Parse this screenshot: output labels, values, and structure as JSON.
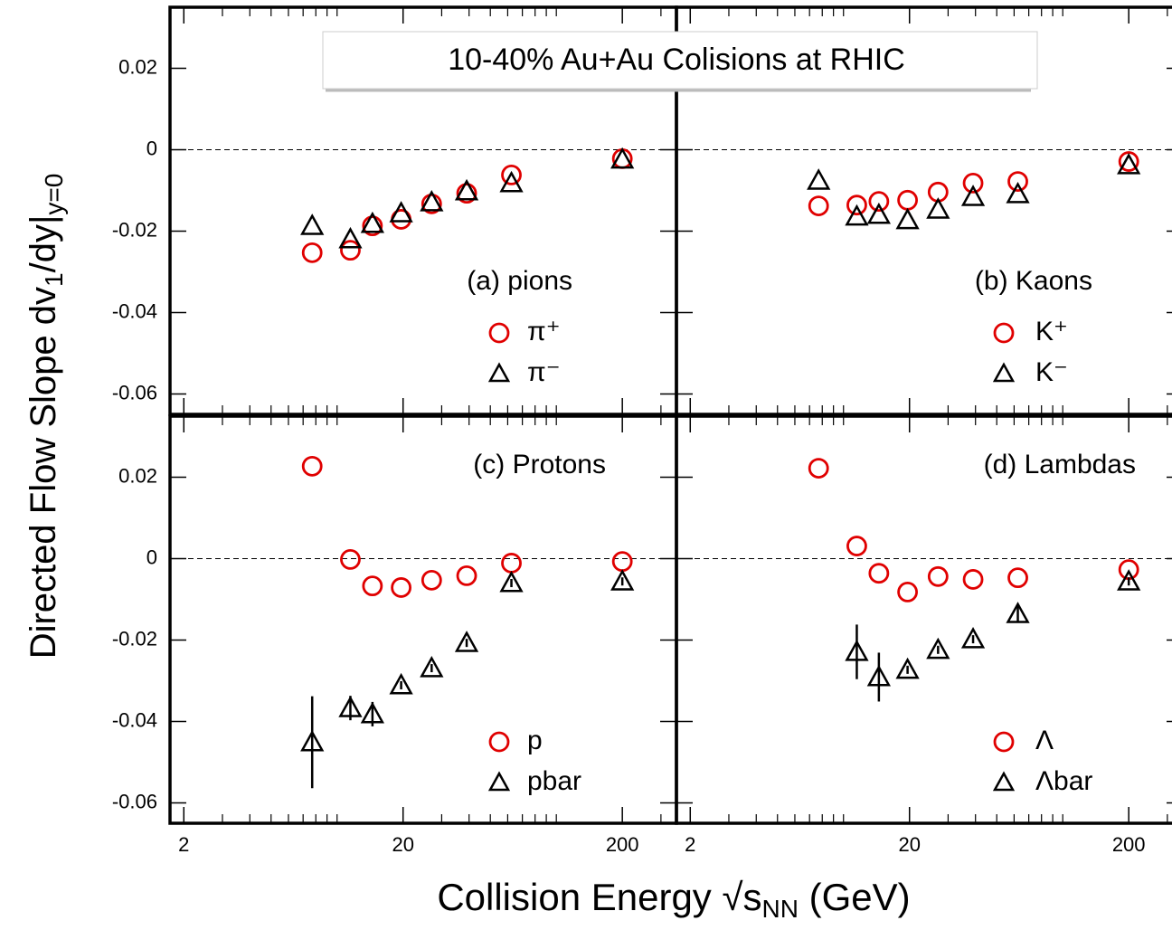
{
  "title": "10-40% Au+Au Colisions at RHIC",
  "y_label": [
    "Directed Flow Slope dv",
    "1",
    "/dy|",
    "y=0"
  ],
  "x_label": [
    "Collision Energy √s",
    "NN",
    " (GeV)"
  ],
  "chart_data": [
    {
      "type": "scatter",
      "panel_label": "(a) pions",
      "log_x": true,
      "zero_line": true,
      "x": [
        7.7,
        11.5,
        14.5,
        19.6,
        27,
        39,
        62.4,
        200
      ],
      "series": [
        {
          "name": "π⁺",
          "marker": "circle",
          "color": "#e00000",
          "values": [
            -0.0253,
            -0.0247,
            -0.0187,
            -0.0171,
            -0.0133,
            -0.0107,
            -0.0062,
            -0.0022
          ]
        },
        {
          "name": "π⁻",
          "marker": "triangle",
          "color": "#000000",
          "values": [
            -0.0187,
            -0.022,
            -0.0182,
            -0.0156,
            -0.0129,
            -0.0102,
            -0.0082,
            -0.0024
          ]
        }
      ],
      "xlim": [
        1.73,
        353
      ],
      "ylim": [
        -0.065,
        0.035
      ],
      "xticks": [
        2,
        20,
        200
      ],
      "xtick_labels": false,
      "xminorticks": [
        3,
        4,
        5,
        6,
        7,
        8,
        9,
        10,
        30,
        40,
        50,
        60,
        70,
        80,
        90,
        100,
        300
      ],
      "yticks": [
        -0.06,
        -0.04,
        -0.02,
        0,
        0.02
      ],
      "ytick_labels": true
    },
    {
      "type": "scatter",
      "panel_label": "(b) Kaons",
      "log_x": true,
      "zero_line": true,
      "x": [
        7.7,
        11.5,
        14.5,
        19.6,
        27,
        39,
        62.4,
        200
      ],
      "series": [
        {
          "name": "K⁺",
          "marker": "circle",
          "color": "#e00000",
          "values": [
            -0.0138,
            -0.0136,
            -0.0127,
            -0.0124,
            -0.0104,
            -0.0082,
            -0.0078,
            -0.0029
          ]
        },
        {
          "name": "K⁻",
          "marker": "triangle",
          "color": "#000000",
          "values": [
            -0.0076,
            -0.0164,
            -0.016,
            -0.0173,
            -0.0147,
            -0.0116,
            -0.0109,
            -0.0038
          ]
        }
      ],
      "xlim": [
        1.73,
        353
      ],
      "ylim": [
        -0.065,
        0.035
      ],
      "xticks": [
        2,
        20,
        200
      ],
      "xtick_labels": false,
      "xminorticks": [
        3,
        4,
        5,
        6,
        7,
        8,
        9,
        10,
        30,
        40,
        50,
        60,
        70,
        80,
        90,
        100,
        300
      ],
      "yticks": [
        -0.06,
        -0.04,
        -0.02,
        0,
        0.02
      ],
      "ytick_labels": false
    },
    {
      "type": "scatter",
      "panel_label": "(c) Protons",
      "log_x": true,
      "zero_line": true,
      "x": [
        7.7,
        11.5,
        14.5,
        19.6,
        27,
        39,
        62.4,
        200
      ],
      "series": [
        {
          "name": "p",
          "marker": "circle",
          "color": "#e00000",
          "values": [
            0.0227,
            -0.0002,
            -0.0067,
            -0.0071,
            -0.0053,
            -0.0042,
            -0.0011,
            -0.0007
          ]
        },
        {
          "name": "pbar",
          "marker": "triangle",
          "color": "#000000",
          "values": [
            -0.0451,
            -0.0367,
            -0.0382,
            -0.0311,
            -0.0269,
            -0.0207,
            -0.006,
            -0.0056
          ],
          "errors": [
            0.0113,
            0.003,
            0.003,
            0.001,
            0.001,
            0.001,
            0.001,
            0.001
          ]
        }
      ],
      "xlim": [
        1.73,
        353
      ],
      "ylim": [
        -0.065,
        0.035
      ],
      "xticks": [
        2,
        20,
        200
      ],
      "xtick_labels": true,
      "xminorticks": [
        3,
        4,
        5,
        6,
        7,
        8,
        9,
        10,
        30,
        40,
        50,
        60,
        70,
        80,
        90,
        100,
        300
      ],
      "yticks": [
        -0.06,
        -0.04,
        -0.02,
        0,
        0.02
      ],
      "ytick_labels": true
    },
    {
      "type": "scatter",
      "panel_label": "(d) Lambdas",
      "log_x": true,
      "zero_line": true,
      "x": [
        7.7,
        11.5,
        14.5,
        19.6,
        27,
        39,
        62.4,
        200
      ],
      "series": [
        {
          "name": "Λ",
          "marker": "circle",
          "color": "#e00000",
          "values": [
            0.0222,
            0.0031,
            -0.0036,
            -0.0082,
            -0.0044,
            -0.0051,
            -0.0047,
            -0.0027
          ]
        },
        {
          "name": "Λbar",
          "marker": "triangle",
          "color": "#000000",
          "values": [
            null,
            -0.0229,
            -0.0291,
            -0.0273,
            -0.0224,
            -0.0198,
            -0.0136,
            -0.0056
          ],
          "errors": [
            null,
            0.0067,
            0.006,
            0.001,
            0.001,
            0.001,
            0.002,
            0.001
          ]
        }
      ],
      "xlim": [
        1.73,
        353
      ],
      "ylim": [
        -0.065,
        0.035
      ],
      "xticks": [
        2,
        20,
        200
      ],
      "xtick_labels": true,
      "xminorticks": [
        3,
        4,
        5,
        6,
        7,
        8,
        9,
        10,
        30,
        40,
        50,
        60,
        70,
        80,
        90,
        100,
        300
      ],
      "yticks": [
        -0.06,
        -0.04,
        -0.02,
        0,
        0.02
      ],
      "ytick_labels": false
    }
  ]
}
